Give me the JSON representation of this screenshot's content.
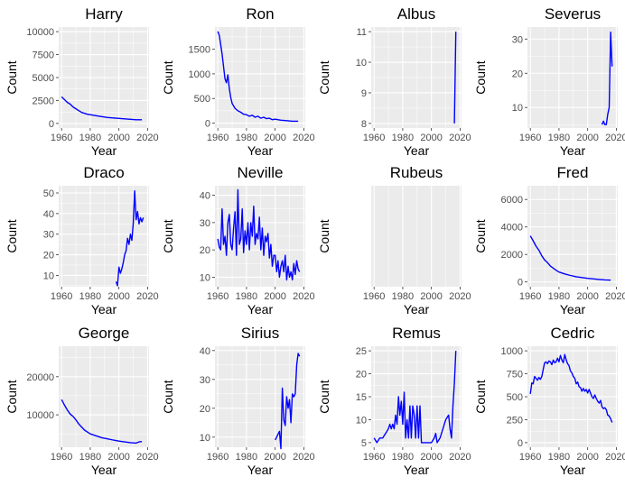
{
  "chart_data": [
    {
      "type": "line",
      "title": "Harry",
      "xlabel": "Year",
      "ylabel": "Count",
      "xlim": [
        1958,
        2021
      ],
      "ylim": [
        -500,
        10500
      ],
      "xticks": [
        1960,
        1980,
        2000,
        2020
      ],
      "yticks": [
        0,
        2500,
        5000,
        7500,
        10000
      ],
      "ytick_labels": [
        "0",
        "2500",
        "5000",
        "7500",
        "10000"
      ],
      "x": [
        1960,
        1962,
        1964,
        1966,
        1968,
        1970,
        1972,
        1974,
        1976,
        1978,
        1980,
        1984,
        1988,
        1992,
        1996,
        2000,
        2004,
        2008,
        2012,
        2016
      ],
      "y": [
        2900,
        2600,
        2300,
        2100,
        1800,
        1600,
        1400,
        1200,
        1100,
        1000,
        950,
        850,
        750,
        650,
        600,
        550,
        500,
        450,
        400,
        400
      ]
    },
    {
      "type": "line",
      "title": "Ron",
      "xlabel": "Year",
      "ylabel": "Count",
      "xlim": [
        1958,
        2021
      ],
      "ylim": [
        -100,
        1950
      ],
      "xticks": [
        1960,
        1980,
        2000,
        2020
      ],
      "yticks": [
        0,
        500,
        1000,
        1500
      ],
      "ytick_labels": [
        "0",
        "500",
        "1000",
        "1500"
      ],
      "x": [
        1960,
        1961,
        1962,
        1963,
        1964,
        1965,
        1966,
        1967,
        1968,
        1969,
        1970,
        1971,
        1972,
        1974,
        1976,
        1978,
        1980,
        1982,
        1984,
        1986,
        1988,
        1990,
        1992,
        1994,
        1996,
        1998,
        2000,
        2004,
        2008,
        2012,
        2016
      ],
      "y": [
        1860,
        1780,
        1600,
        1400,
        1150,
        900,
        820,
        980,
        700,
        520,
        400,
        350,
        300,
        250,
        220,
        180,
        170,
        140,
        160,
        120,
        140,
        100,
        120,
        90,
        100,
        70,
        80,
        60,
        50,
        40,
        40
      ]
    },
    {
      "type": "line",
      "title": "Albus",
      "xlabel": "Year",
      "ylabel": "Count",
      "xlim": [
        1958,
        2021
      ],
      "ylim": [
        7.85,
        11.15
      ],
      "xticks": [
        1960,
        1980,
        2000,
        2020
      ],
      "yticks": [
        8,
        9,
        10,
        11
      ],
      "ytick_labels": [
        "8",
        "9",
        "10",
        "11"
      ],
      "x": [
        2016,
        2017
      ],
      "y": [
        8,
        11
      ]
    },
    {
      "type": "line",
      "title": "Severus",
      "xlabel": "Year",
      "ylabel": "Count",
      "xlim": [
        1958,
        2021
      ],
      "ylim": [
        4,
        33.5
      ],
      "xticks": [
        1960,
        1980,
        2000,
        2020
      ],
      "yticks": [
        10,
        20,
        30
      ],
      "ytick_labels": [
        "10",
        "20",
        "30"
      ],
      "x": [
        2010,
        2011,
        2012,
        2013,
        2014,
        2015,
        2016,
        2017
      ],
      "y": [
        5,
        6,
        5,
        5,
        8,
        10,
        32,
        22
      ]
    },
    {
      "type": "line",
      "title": "Draco",
      "xlabel": "Year",
      "ylabel": "Count",
      "xlim": [
        1958,
        2021
      ],
      "ylim": [
        4.5,
        53.5
      ],
      "xticks": [
        1960,
        1980,
        2000,
        2020
      ],
      "yticks": [
        10,
        20,
        30,
        40,
        50
      ],
      "ytick_labels": [
        "10",
        "20",
        "30",
        "40",
        "50"
      ],
      "x": [
        1998,
        1999,
        2000,
        2001,
        2002,
        2003,
        2004,
        2005,
        2006,
        2007,
        2008,
        2009,
        2010,
        2011,
        2012,
        2013,
        2014,
        2015,
        2016,
        2017
      ],
      "y": [
        7,
        5,
        14,
        11,
        13,
        16,
        20,
        22,
        28,
        25,
        30,
        27,
        35,
        51,
        37,
        41,
        35,
        38,
        36,
        38
      ]
    },
    {
      "type": "line",
      "title": "Neville",
      "xlabel": "Year",
      "ylabel": "Count",
      "xlim": [
        1958,
        2021
      ],
      "ylim": [
        6.5,
        43.5
      ],
      "xticks": [
        1960,
        1980,
        2000,
        2020
      ],
      "yticks": [
        10,
        20,
        30,
        40
      ],
      "ytick_labels": [
        "10",
        "20",
        "30",
        "40"
      ],
      "x": [
        1960,
        1961,
        1962,
        1963,
        1964,
        1965,
        1966,
        1967,
        1968,
        1969,
        1970,
        1971,
        1972,
        1973,
        1974,
        1975,
        1976,
        1977,
        1978,
        1979,
        1980,
        1981,
        1982,
        1983,
        1984,
        1985,
        1986,
        1987,
        1988,
        1989,
        1990,
        1991,
        1992,
        1993,
        1994,
        1995,
        1996,
        1997,
        1998,
        1999,
        2000,
        2001,
        2002,
        2003,
        2004,
        2005,
        2006,
        2007,
        2008,
        2009,
        2010,
        2011,
        2012,
        2013,
        2014,
        2015,
        2016,
        2017
      ],
      "y": [
        24,
        21,
        20,
        35,
        22,
        25,
        18,
        30,
        33,
        22,
        20,
        28,
        34,
        18,
        42,
        22,
        24,
        35,
        19,
        27,
        22,
        30,
        20,
        30,
        25,
        36,
        22,
        26,
        24,
        32,
        20,
        28,
        18,
        25,
        23,
        26,
        17,
        22,
        14,
        18,
        18,
        12,
        16,
        10,
        14,
        16,
        12,
        18,
        9,
        14,
        10,
        12,
        9,
        15,
        11,
        16,
        13,
        12
      ]
    },
    {
      "type": "line",
      "title": "Rubeus",
      "xlabel": "Year",
      "ylabel": "Count",
      "xlim": [
        1958,
        2021
      ],
      "ylim": [
        0,
        1
      ],
      "xticks": [
        1960,
        1980,
        2000,
        2020
      ],
      "yticks": [],
      "ytick_labels": [],
      "x": [],
      "y": []
    },
    {
      "type": "line",
      "title": "Fred",
      "xlabel": "Year",
      "ylabel": "Count",
      "xlim": [
        1958,
        2021
      ],
      "ylim": [
        -350,
        7000
      ],
      "xticks": [
        1960,
        1980,
        2000,
        2020
      ],
      "yticks": [
        0,
        2000,
        4000,
        6000
      ],
      "ytick_labels": [
        "0",
        "2000",
        "4000",
        "6000"
      ],
      "x": [
        1960,
        1962,
        1964,
        1966,
        1968,
        1970,
        1972,
        1974,
        1976,
        1978,
        1980,
        1984,
        1988,
        1992,
        1996,
        2000,
        2004,
        2008,
        2012,
        2016
      ],
      "y": [
        3350,
        3000,
        2600,
        2300,
        1900,
        1600,
        1400,
        1150,
        1000,
        850,
        720,
        580,
        470,
        380,
        320,
        260,
        220,
        180,
        150,
        130
      ]
    },
    {
      "type": "line",
      "title": "George",
      "xlabel": "Year",
      "ylabel": "Count",
      "xlim": [
        1958,
        2021
      ],
      "ylim": [
        1500,
        28000
      ],
      "xticks": [
        1960,
        1980,
        2000,
        2020
      ],
      "yticks": [
        10000,
        20000
      ],
      "ytick_labels": [
        "10000",
        "20000"
      ],
      "x": [
        1960,
        1962,
        1964,
        1966,
        1968,
        1970,
        1972,
        1974,
        1976,
        1978,
        1980,
        1984,
        1988,
        1992,
        1996,
        2000,
        2004,
        2008,
        2012,
        2014,
        2016
      ],
      "y": [
        14000,
        12600,
        11300,
        10200,
        9600,
        8700,
        7600,
        6800,
        6000,
        5500,
        5000,
        4500,
        4000,
        3700,
        3400,
        3100,
        2900,
        2700,
        2600,
        2900,
        3000
      ]
    },
    {
      "type": "line",
      "title": "Sirius",
      "xlabel": "Year",
      "ylabel": "Count",
      "xlim": [
        1958,
        2021
      ],
      "ylim": [
        6.5,
        41.5
      ],
      "xticks": [
        1960,
        1980,
        2000,
        2020
      ],
      "yticks": [
        10,
        20,
        30,
        40
      ],
      "ytick_labels": [
        "10",
        "20",
        "30",
        "40"
      ],
      "x": [
        2000,
        2001,
        2002,
        2003,
        2004,
        2005,
        2006,
        2007,
        2008,
        2009,
        2010,
        2011,
        2012,
        2013,
        2014,
        2015,
        2016,
        2017
      ],
      "y": [
        9,
        10,
        11,
        12,
        6,
        27,
        16,
        14,
        24,
        20,
        23,
        15,
        25,
        24,
        25,
        35,
        39,
        38
      ]
    },
    {
      "type": "line",
      "title": "Remus",
      "xlabel": "Year",
      "ylabel": "Count",
      "xlim": [
        1958,
        2021
      ],
      "ylim": [
        4,
        26
      ],
      "xticks": [
        1960,
        1980,
        2000,
        2020
      ],
      "yticks": [
        5,
        10,
        15,
        20,
        25
      ],
      "ytick_labels": [
        "5",
        "10",
        "15",
        "20",
        "25"
      ],
      "x": [
        1960,
        1962,
        1964,
        1966,
        1968,
        1970,
        1971,
        1972,
        1973,
        1974,
        1975,
        1976,
        1977,
        1978,
        1979,
        1980,
        1981,
        1982,
        1983,
        1984,
        1985,
        1986,
        1987,
        1988,
        1989,
        1990,
        1991,
        1992,
        1993,
        1994,
        1996,
        1998,
        2000,
        2002,
        2003,
        2004,
        2006,
        2008,
        2010,
        2012,
        2013,
        2014,
        2015,
        2016,
        2017
      ],
      "y": [
        6,
        5,
        6,
        6,
        7,
        8,
        9,
        8,
        9,
        8,
        11,
        9,
        15,
        11,
        14,
        9,
        16,
        6,
        10,
        6,
        13,
        6,
        13,
        11,
        6,
        13,
        6,
        13,
        5,
        5,
        5,
        5,
        5,
        6,
        7,
        5,
        6,
        8,
        10,
        11,
        8,
        6,
        13,
        18,
        25
      ]
    },
    {
      "type": "line",
      "title": "Cedric",
      "xlabel": "Year",
      "ylabel": "Count",
      "xlim": [
        1958,
        2021
      ],
      "ylim": [
        -50,
        1050
      ],
      "xticks": [
        1960,
        1980,
        2000,
        2020
      ],
      "yticks": [
        0,
        250,
        500,
        750,
        1000
      ],
      "ytick_labels": [
        "0",
        "250",
        "500",
        "750",
        "1000"
      ],
      "x": [
        1960,
        1961,
        1962,
        1963,
        1964,
        1965,
        1966,
        1967,
        1968,
        1969,
        1970,
        1971,
        1972,
        1973,
        1974,
        1975,
        1976,
        1977,
        1978,
        1979,
        1980,
        1981,
        1982,
        1983,
        1984,
        1985,
        1986,
        1987,
        1988,
        1989,
        1990,
        1991,
        1992,
        1993,
        1994,
        1995,
        1996,
        1997,
        1998,
        1999,
        2000,
        2001,
        2002,
        2003,
        2004,
        2005,
        2006,
        2007,
        2008,
        2009,
        2010,
        2011,
        2012,
        2013,
        2014,
        2015,
        2016,
        2017
      ],
      "y": [
        530,
        650,
        640,
        720,
        700,
        680,
        710,
        690,
        720,
        800,
        870,
        880,
        860,
        890,
        880,
        850,
        900,
        870,
        880,
        920,
        880,
        950,
        900,
        870,
        960,
        900,
        860,
        840,
        780,
        760,
        720,
        700,
        640,
        660,
        610,
        600,
        560,
        590,
        560,
        580,
        540,
        580,
        540,
        500,
        480,
        520,
        480,
        450,
        430,
        460,
        390,
        370,
        380,
        360,
        300,
        290,
        260,
        220
      ]
    }
  ]
}
